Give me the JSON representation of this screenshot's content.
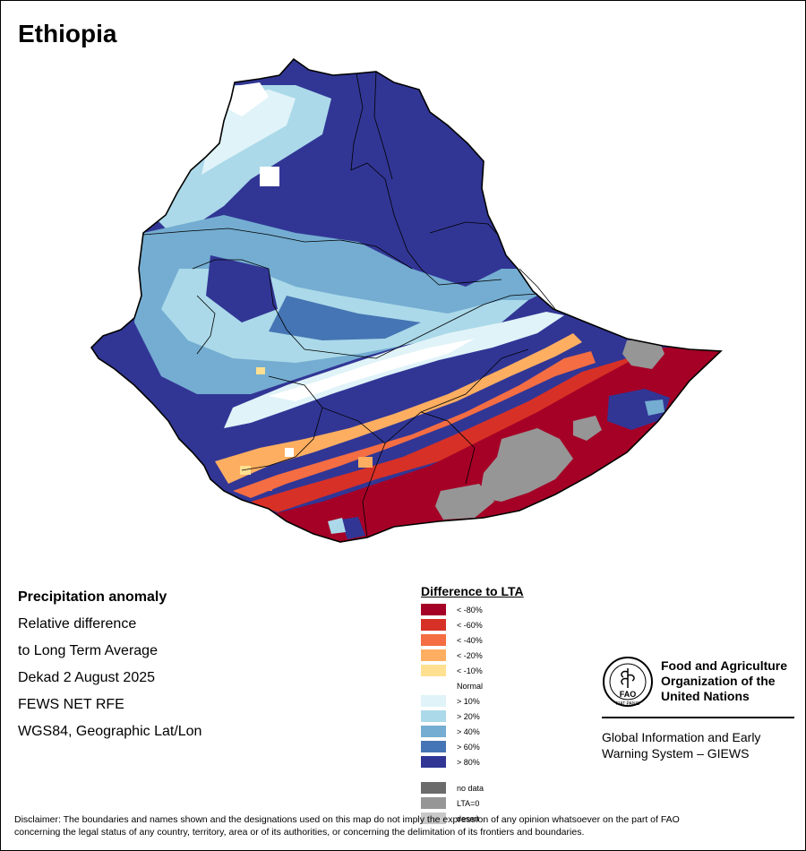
{
  "title": "Ethiopia",
  "info": {
    "heading": "Precipitation anomaly",
    "lines": [
      "Relative difference",
      "to Long Term Average",
      "Dekad 2 August 2025",
      "FEWS NET RFE",
      "WGS84, Geographic Lat/Lon"
    ]
  },
  "legend": {
    "title": "Difference to LTA",
    "items": [
      {
        "label": "< -80%",
        "color": "#a50026"
      },
      {
        "label": "< -60%",
        "color": "#d73027"
      },
      {
        "label": "< -40%",
        "color": "#f46d43"
      },
      {
        "label": "< -20%",
        "color": "#fdae61"
      },
      {
        "label": "< -10%",
        "color": "#fee090"
      },
      {
        "label": "Normal",
        "color": "#ffffff"
      },
      {
        "label": "> 10%",
        "color": "#e0f3f8"
      },
      {
        "label": "> 20%",
        "color": "#abd9e9"
      },
      {
        "label": "> 40%",
        "color": "#74add1"
      },
      {
        "label": "> 60%",
        "color": "#4575b4"
      },
      {
        "label": "> 80%",
        "color": "#313695"
      }
    ],
    "extra": [
      {
        "label": "no data",
        "color": "#6b6b6b"
      },
      {
        "label": "LTA=0",
        "color": "#969696"
      },
      {
        "label": "desert",
        "color": "#c8c8c8"
      }
    ]
  },
  "fao": {
    "logo_text": "FAO",
    "logo_motto": "FIAT PANIS",
    "org_lines": [
      "Food and Agriculture",
      "Organization of the",
      "United Nations"
    ],
    "giews_lines": [
      "Global Information and Early",
      "Warning System – GIEWS"
    ]
  },
  "disclaimer_lines": [
    "Disclaimer: The boundaries and names shown and the designations used on this map do not imply the expression of any opinion whatsoever on the part of FAO",
    "concerning the legal status of any country, territory, area or of its authorities, or concerning the delimitation of its frontiers and boundaries."
  ]
}
